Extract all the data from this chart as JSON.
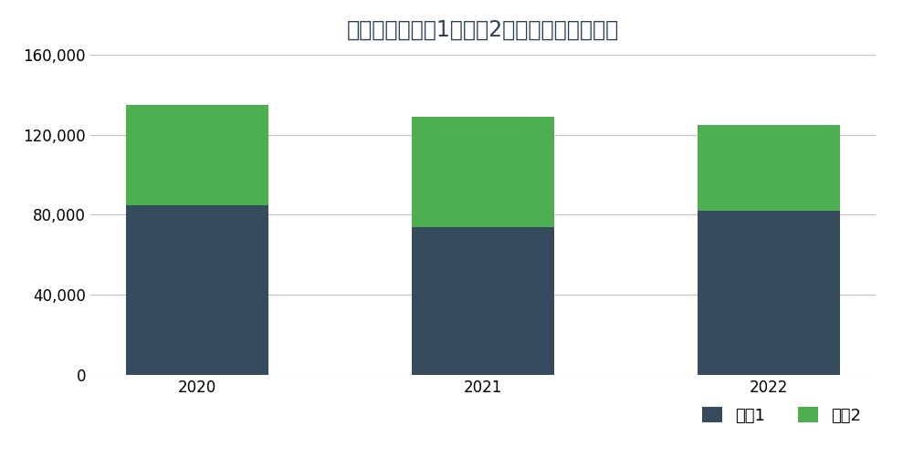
{
  "title": "所有工厂的范围1和范围2年度二氧化碳排放量",
  "years": [
    "2020",
    "2021",
    "2022"
  ],
  "scope1": [
    85000,
    74000,
    82000
  ],
  "scope2": [
    50000,
    55000,
    43000
  ],
  "color_scope1": "#374B5F",
  "color_scope2": "#4CAF50",
  "ylim": [
    0,
    160000
  ],
  "yticks": [
    0,
    40000,
    80000,
    120000,
    160000
  ],
  "legend_labels": [
    "范围1",
    "范围2"
  ],
  "background_color": "#FFFFFF",
  "grid_color": "#C0C0C0",
  "title_color": "#2E4057",
  "title_fontsize": 17,
  "tick_fontsize": 12,
  "legend_fontsize": 13,
  "bar_width": 0.5
}
